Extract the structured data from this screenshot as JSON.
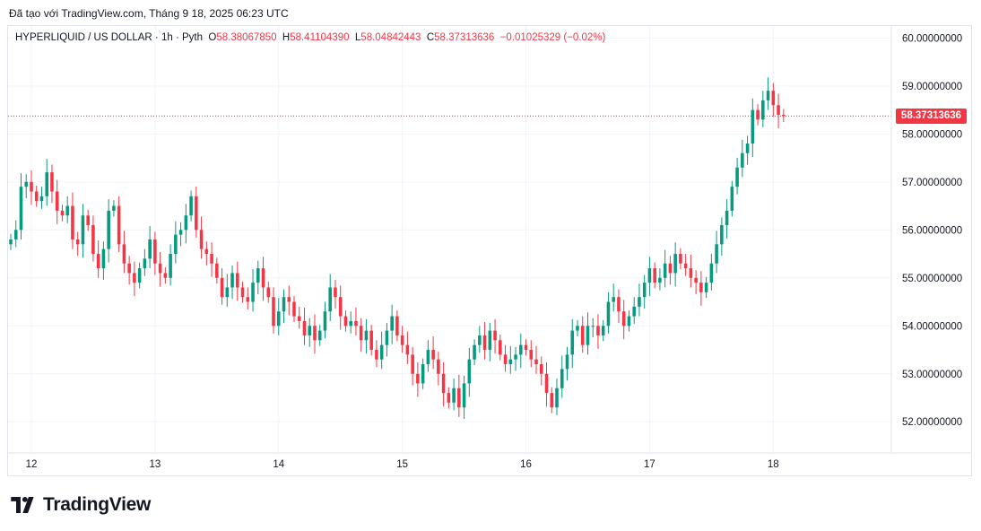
{
  "caption": "Đã tạo với TradingView.com, Tháng 9 18, 2025 06:23 UTC",
  "legend": {
    "symbol": "HYPERLIQUID / US DOLLAR · 1h · Pyth",
    "o_label": "O",
    "o_value": "58.38067850",
    "h_label": "H",
    "h_value": "58.41104390",
    "l_label": "L",
    "l_value": "58.04842443",
    "c_label": "C",
    "c_value": "58.37313636",
    "change": "−0.01025329 (−0.02%)"
  },
  "last_price_label": "58.37313636",
  "brand": "TradingView",
  "colors": {
    "up": "#089981",
    "down": "#f23645",
    "grid": "#f0f3fa",
    "axis_text": "#131722"
  },
  "chart_data": {
    "type": "candlestick",
    "title": "HYPERLIQUID / US DOLLAR · 1h · Pyth",
    "ylim": [
      51.35,
      60.25
    ],
    "xlim": [
      0,
      161
    ],
    "y_ticks": [
      "60.00000000",
      "59.00000000",
      "58.00000000",
      "57.00000000",
      "56.00000000",
      "55.00000000",
      "54.00000000",
      "53.00000000",
      "52.00000000"
    ],
    "x_ticks": [
      {
        "label": "12",
        "bar": 4
      },
      {
        "label": "13",
        "bar": 28
      },
      {
        "label": "14",
        "bar": 52
      },
      {
        "label": "15",
        "bar": 76
      },
      {
        "label": "16",
        "bar": 100
      },
      {
        "label": "17",
        "bar": 124
      },
      {
        "label": "18",
        "bar": 148
      }
    ],
    "last_price": 58.37313636,
    "close": [
      55.8,
      56.0,
      56.9,
      57.0,
      56.8,
      56.6,
      56.7,
      57.2,
      56.8,
      56.4,
      56.3,
      56.5,
      55.8,
      55.7,
      56.3,
      56.1,
      55.5,
      55.2,
      55.6,
      56.4,
      56.5,
      55.7,
      55.3,
      55.1,
      54.9,
      55.2,
      55.4,
      55.8,
      55.3,
      55.1,
      55.0,
      55.5,
      55.9,
      56.0,
      56.3,
      56.7,
      56.0,
      55.6,
      55.5,
      55.3,
      55.0,
      54.6,
      54.8,
      55.1,
      54.8,
      54.6,
      54.5,
      54.9,
      55.2,
      54.8,
      54.6,
      54.0,
      54.3,
      54.6,
      54.5,
      54.2,
      54.1,
      53.8,
      54.0,
      53.7,
      53.9,
      54.3,
      54.8,
      54.6,
      54.2,
      54.0,
      54.1,
      54.0,
      53.7,
      53.9,
      53.5,
      53.3,
      53.6,
      53.9,
      54.2,
      53.8,
      53.6,
      53.4,
      53.0,
      52.8,
      53.2,
      53.5,
      53.3,
      53.0,
      52.6,
      52.4,
      52.7,
      52.3,
      52.8,
      53.3,
      53.6,
      53.8,
      53.5,
      53.9,
      53.7,
      53.4,
      53.2,
      53.3,
      53.4,
      53.6,
      53.5,
      53.3,
      53.2,
      53.0,
      52.6,
      52.3,
      52.7,
      53.1,
      53.4,
      53.9,
      54.0,
      53.6,
      54.0,
      54.0,
      53.8,
      54.0,
      54.5,
      54.6,
      54.3,
      54.0,
      54.2,
      54.4,
      54.6,
      54.9,
      55.2,
      54.9,
      55.0,
      55.3,
      55.1,
      55.5,
      55.3,
      55.2,
      55.0,
      54.9,
      54.7,
      54.9,
      55.3,
      55.7,
      56.1,
      56.4,
      56.9,
      57.3,
      57.6,
      57.8,
      58.5,
      58.3,
      58.7,
      58.9,
      58.6,
      58.4,
      58.37
    ],
    "series": [
      {
        "name": "HYPE/USD 1h"
      }
    ]
  }
}
